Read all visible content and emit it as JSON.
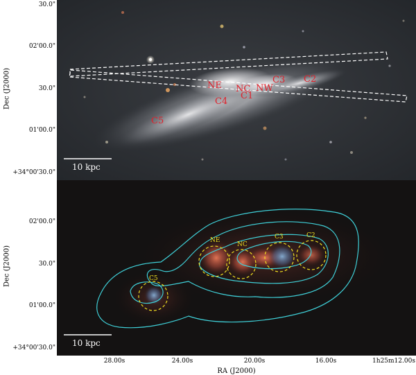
{
  "top_panel": {
    "y_ticks": [
      "30.0\"",
      "02'00.0\"",
      "30.0\"",
      "01'00.0\"",
      "+34°00'30.0\""
    ],
    "y_label": "Dec (J2000)",
    "region_labels": [
      "NE",
      "NC",
      "NW",
      "C3",
      "C2",
      "C4",
      "C1",
      "C5"
    ],
    "scale_bar_label": "10 kpc",
    "label_color": "#e0202a"
  },
  "bottom_panel": {
    "y_ticks": [
      "02'00.0\"",
      "30.0\"",
      "01'00.0\"",
      "+34°00'30.0\""
    ],
    "y_label": "Dec (J2000)",
    "region_labels": [
      "NE",
      "NC",
      "C3",
      "C2",
      "C5"
    ],
    "scale_bar_label": "10 kpc",
    "label_color": "#f0e020",
    "contour_color": "#3fd0d8"
  },
  "x_axis": {
    "ticks": [
      "28.00s",
      "24.00s",
      "20.00s",
      "16.00s",
      "1h25m12.00s"
    ],
    "label": "RA (J2000)"
  }
}
